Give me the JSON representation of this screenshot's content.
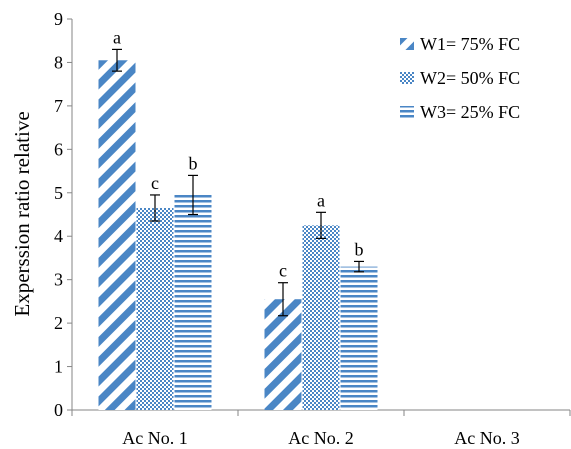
{
  "chart_data": {
    "type": "bar",
    "ylabel": "Experssion ratio relative",
    "ylim": [
      0,
      9
    ],
    "yticks": [
      "0",
      "1",
      "2",
      "3",
      "4",
      "5",
      "6",
      "7",
      "8",
      "9"
    ],
    "categories": [
      "Ac No. 1",
      "Ac No. 2",
      "Ac No. 3"
    ],
    "series": [
      {
        "name": "W1= 75% FC",
        "values": [
          8.05,
          2.55,
          null
        ],
        "errors": [
          0.25,
          0.38,
          null
        ],
        "labels": [
          "a",
          "c",
          ""
        ],
        "pattern": "diag"
      },
      {
        "name": "W2= 50% FC",
        "values": [
          4.65,
          4.25,
          null
        ],
        "errors": [
          0.3,
          0.3,
          null
        ],
        "labels": [
          "c",
          "a",
          ""
        ],
        "pattern": "hatch"
      },
      {
        "name": "W3= 25% FC",
        "values": [
          4.95,
          3.3,
          null
        ],
        "errors": [
          0.45,
          0.12,
          null
        ],
        "labels": [
          "b",
          "b",
          ""
        ],
        "pattern": "horiz"
      }
    ],
    "legend_position": "top-right",
    "bar_color": "#4a86c5",
    "grid": false
  }
}
